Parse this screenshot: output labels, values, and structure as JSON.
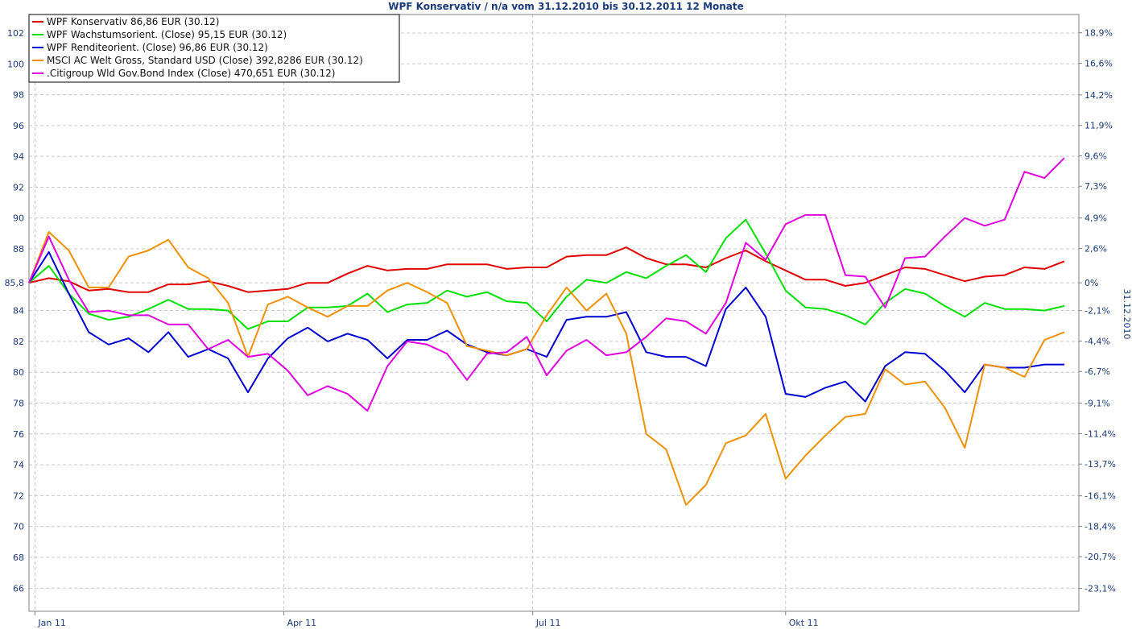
{
  "chart_data": {
    "type": "line",
    "title": "WPF Konservativ / n/a vom 31.12.2010 bis 30.12.2011 12 Monate",
    "right_axis_label": "31.12.2010",
    "ylim": [
      64.5,
      103.2
    ],
    "y_ticks": [
      "66",
      "68",
      "70",
      "72",
      "74",
      "76",
      "78",
      "80",
      "82",
      "84",
      "85,8",
      "88",
      "90",
      "92",
      "94",
      "96",
      "98",
      "100",
      "102"
    ],
    "right_ticks": [
      "18,9%",
      "16,6%",
      "14,2%",
      "11,9%",
      "9,6%",
      "7,3%",
      "4,9%",
      "2,6%",
      "0%",
      "-2,1%",
      "-4,4%",
      "-6,7%",
      "-9,1%",
      "-11,4%",
      "-13,7%",
      "-16,1%",
      "-18,4%",
      "-20,7%",
      "-23,1%"
    ],
    "right_tick_values": [
      18.9,
      16.6,
      14.2,
      11.9,
      9.6,
      7.3,
      4.9,
      2.6,
      0,
      -2.1,
      -4.4,
      -6.7,
      -9.1,
      -11.4,
      -13.7,
      -16.1,
      -18.4,
      -20.7,
      -23.1
    ],
    "base_value": 85.8,
    "x_ticks": [
      {
        "label": "Jan 11",
        "index": 0.3
      },
      {
        "label": "Apr 11",
        "index": 12.8
      },
      {
        "label": "Jul 11",
        "index": 25.3
      },
      {
        "label": "Okt 11",
        "index": 38.0
      }
    ],
    "grid": true,
    "legend_position": "top-left",
    "series": [
      {
        "name": "WPF Konservativ 86,86 EUR (30.12)",
        "color": "#e00000",
        "values": [
          85.8,
          86.1,
          85.9,
          85.3,
          85.4,
          85.2,
          85.2,
          85.7,
          85.7,
          85.9,
          85.6,
          85.2,
          85.3,
          85.4,
          85.8,
          85.8,
          86.4,
          86.9,
          86.6,
          86.7,
          86.7,
          87.0,
          87.0,
          87.0,
          86.7,
          86.8,
          86.8,
          87.5,
          87.6,
          87.6,
          88.1,
          87.4,
          87.0,
          87.0,
          86.8,
          87.4,
          87.9,
          87.2,
          86.6,
          86.0,
          86.0,
          85.6,
          85.8,
          86.3,
          86.8,
          86.7,
          86.3,
          85.9,
          86.2,
          86.3,
          86.8,
          86.7,
          87.2
        ]
      },
      {
        "name": "WPF Wachstumsorient. (Close) 95,15 EUR (30.12)",
        "color": "#00e000",
        "values": [
          85.8,
          86.9,
          85.1,
          83.8,
          83.4,
          83.6,
          84.1,
          84.7,
          84.1,
          84.1,
          84.0,
          82.8,
          83.3,
          83.3,
          84.2,
          84.2,
          84.3,
          85.1,
          83.9,
          84.4,
          84.5,
          85.3,
          84.9,
          85.2,
          84.6,
          84.5,
          83.3,
          84.9,
          86.0,
          85.8,
          86.5,
          86.1,
          86.9,
          87.6,
          86.5,
          88.7,
          89.9,
          87.7,
          85.3,
          84.2,
          84.1,
          83.7,
          83.1,
          84.5,
          85.4,
          85.1,
          84.3,
          83.6,
          84.5,
          84.1,
          84.1,
          84.0,
          84.3
        ]
      },
      {
        "name": "WPF Renditeorient. (Close) 96,86 EUR (30.12)",
        "color": "#0000d0",
        "values": [
          85.8,
          87.8,
          85.1,
          82.6,
          81.8,
          82.2,
          81.3,
          82.6,
          81.0,
          81.5,
          80.9,
          78.7,
          80.9,
          82.2,
          82.9,
          82.0,
          82.5,
          82.1,
          80.9,
          82.1,
          82.1,
          82.7,
          81.8,
          81.3,
          81.1,
          81.5,
          81.0,
          83.4,
          83.6,
          83.6,
          83.9,
          81.3,
          81.0,
          81.0,
          80.4,
          84.1,
          85.5,
          83.6,
          78.6,
          78.4,
          79.0,
          79.4,
          78.1,
          80.4,
          81.3,
          81.2,
          80.1,
          78.7,
          80.5,
          80.3,
          80.3,
          80.5,
          80.5
        ]
      },
      {
        "name": "MSCI AC Welt Gross, Standard USD (Close) 392,8286 EUR (30.12)",
        "color": "#f09000",
        "values": [
          85.8,
          89.1,
          87.9,
          85.5,
          85.5,
          87.5,
          87.9,
          88.6,
          86.8,
          86.1,
          84.5,
          81.0,
          84.4,
          84.9,
          84.2,
          83.6,
          84.3,
          84.3,
          85.3,
          85.8,
          85.2,
          84.5,
          81.7,
          81.4,
          81.1,
          81.5,
          83.7,
          85.5,
          84.0,
          85.1,
          82.5,
          76.0,
          75.0,
          71.4,
          72.7,
          75.4,
          75.9,
          77.3,
          73.1,
          74.6,
          75.9,
          77.1,
          77.3,
          80.2,
          79.2,
          79.4,
          77.7,
          75.1,
          80.5,
          80.3,
          79.7,
          82.1,
          82.6
        ]
      },
      {
        "name": ".Citigroup Wld Gov.Bond Index (Close) 470,651 EUR (30.12)",
        "color": "#e000e0",
        "values": [
          85.8,
          88.8,
          86.0,
          83.9,
          84.0,
          83.7,
          83.7,
          83.1,
          83.1,
          81.5,
          82.1,
          81.0,
          81.2,
          80.1,
          78.5,
          79.1,
          78.6,
          77.5,
          80.4,
          82.0,
          81.8,
          81.2,
          79.5,
          81.2,
          81.3,
          82.3,
          79.8,
          81.4,
          82.1,
          81.1,
          81.3,
          82.3,
          83.5,
          83.3,
          82.5,
          84.5,
          88.4,
          87.3,
          89.6,
          90.2,
          90.2,
          86.3,
          86.2,
          84.2,
          87.4,
          87.5,
          88.8,
          90.0,
          89.5,
          89.9,
          93.0,
          92.6,
          93.9
        ]
      }
    ]
  }
}
